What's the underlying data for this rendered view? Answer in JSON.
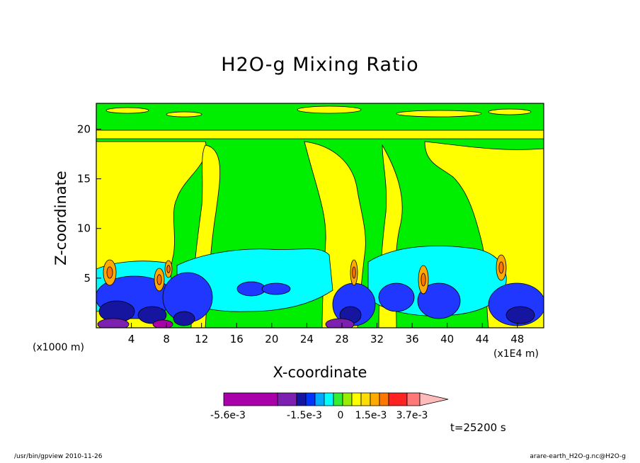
{
  "chart_data": {
    "type": "heatmap",
    "title": "H2O-g Mixing Ratio",
    "xlabel": "X-coordinate",
    "ylabel": "Z-coordinate",
    "x_unit": "(x1E4 m)",
    "y_unit": "(x1000 m)",
    "xlim": [
      0,
      51
    ],
    "ylim": [
      0,
      22.6
    ],
    "x_ticks": [
      "4",
      "8",
      "12",
      "16",
      "20",
      "24",
      "28",
      "32",
      "36",
      "40",
      "44",
      "48"
    ],
    "y_ticks": [
      "5",
      "10",
      "15",
      "20"
    ],
    "colorbar": {
      "labels": [
        "-5.6e-3",
        "-1.5e-3",
        "0",
        "1.5e-3",
        "3.7e-3"
      ],
      "colors": [
        "#aa00aa",
        "#7d1fb0",
        "#1515a0",
        "#0033ff",
        "#00aaff",
        "#00ffff",
        "#33ee33",
        "#99ee00",
        "#ffff00",
        "#ffdd00",
        "#ffaa00",
        "#ff7700",
        "#ff2222",
        "#ff7777",
        "#ffbbbb"
      ]
    },
    "annotation": "t=25200 s"
  },
  "footer": {
    "left": "/usr/bin/gpview   2010-11-26",
    "right": "arare-earth_H2O-g.nc@H2O-g"
  },
  "colors": {
    "green": "#00ee00",
    "yellow": "#ffff00",
    "cyan": "#00ffff",
    "blue": "#1f37ff",
    "navy": "#1515a0",
    "purple": "#7d1fb0",
    "magenta": "#aa00aa",
    "orange": "#ffaa00",
    "dark_orange": "#ff7700",
    "light_green": "#99ee00"
  }
}
